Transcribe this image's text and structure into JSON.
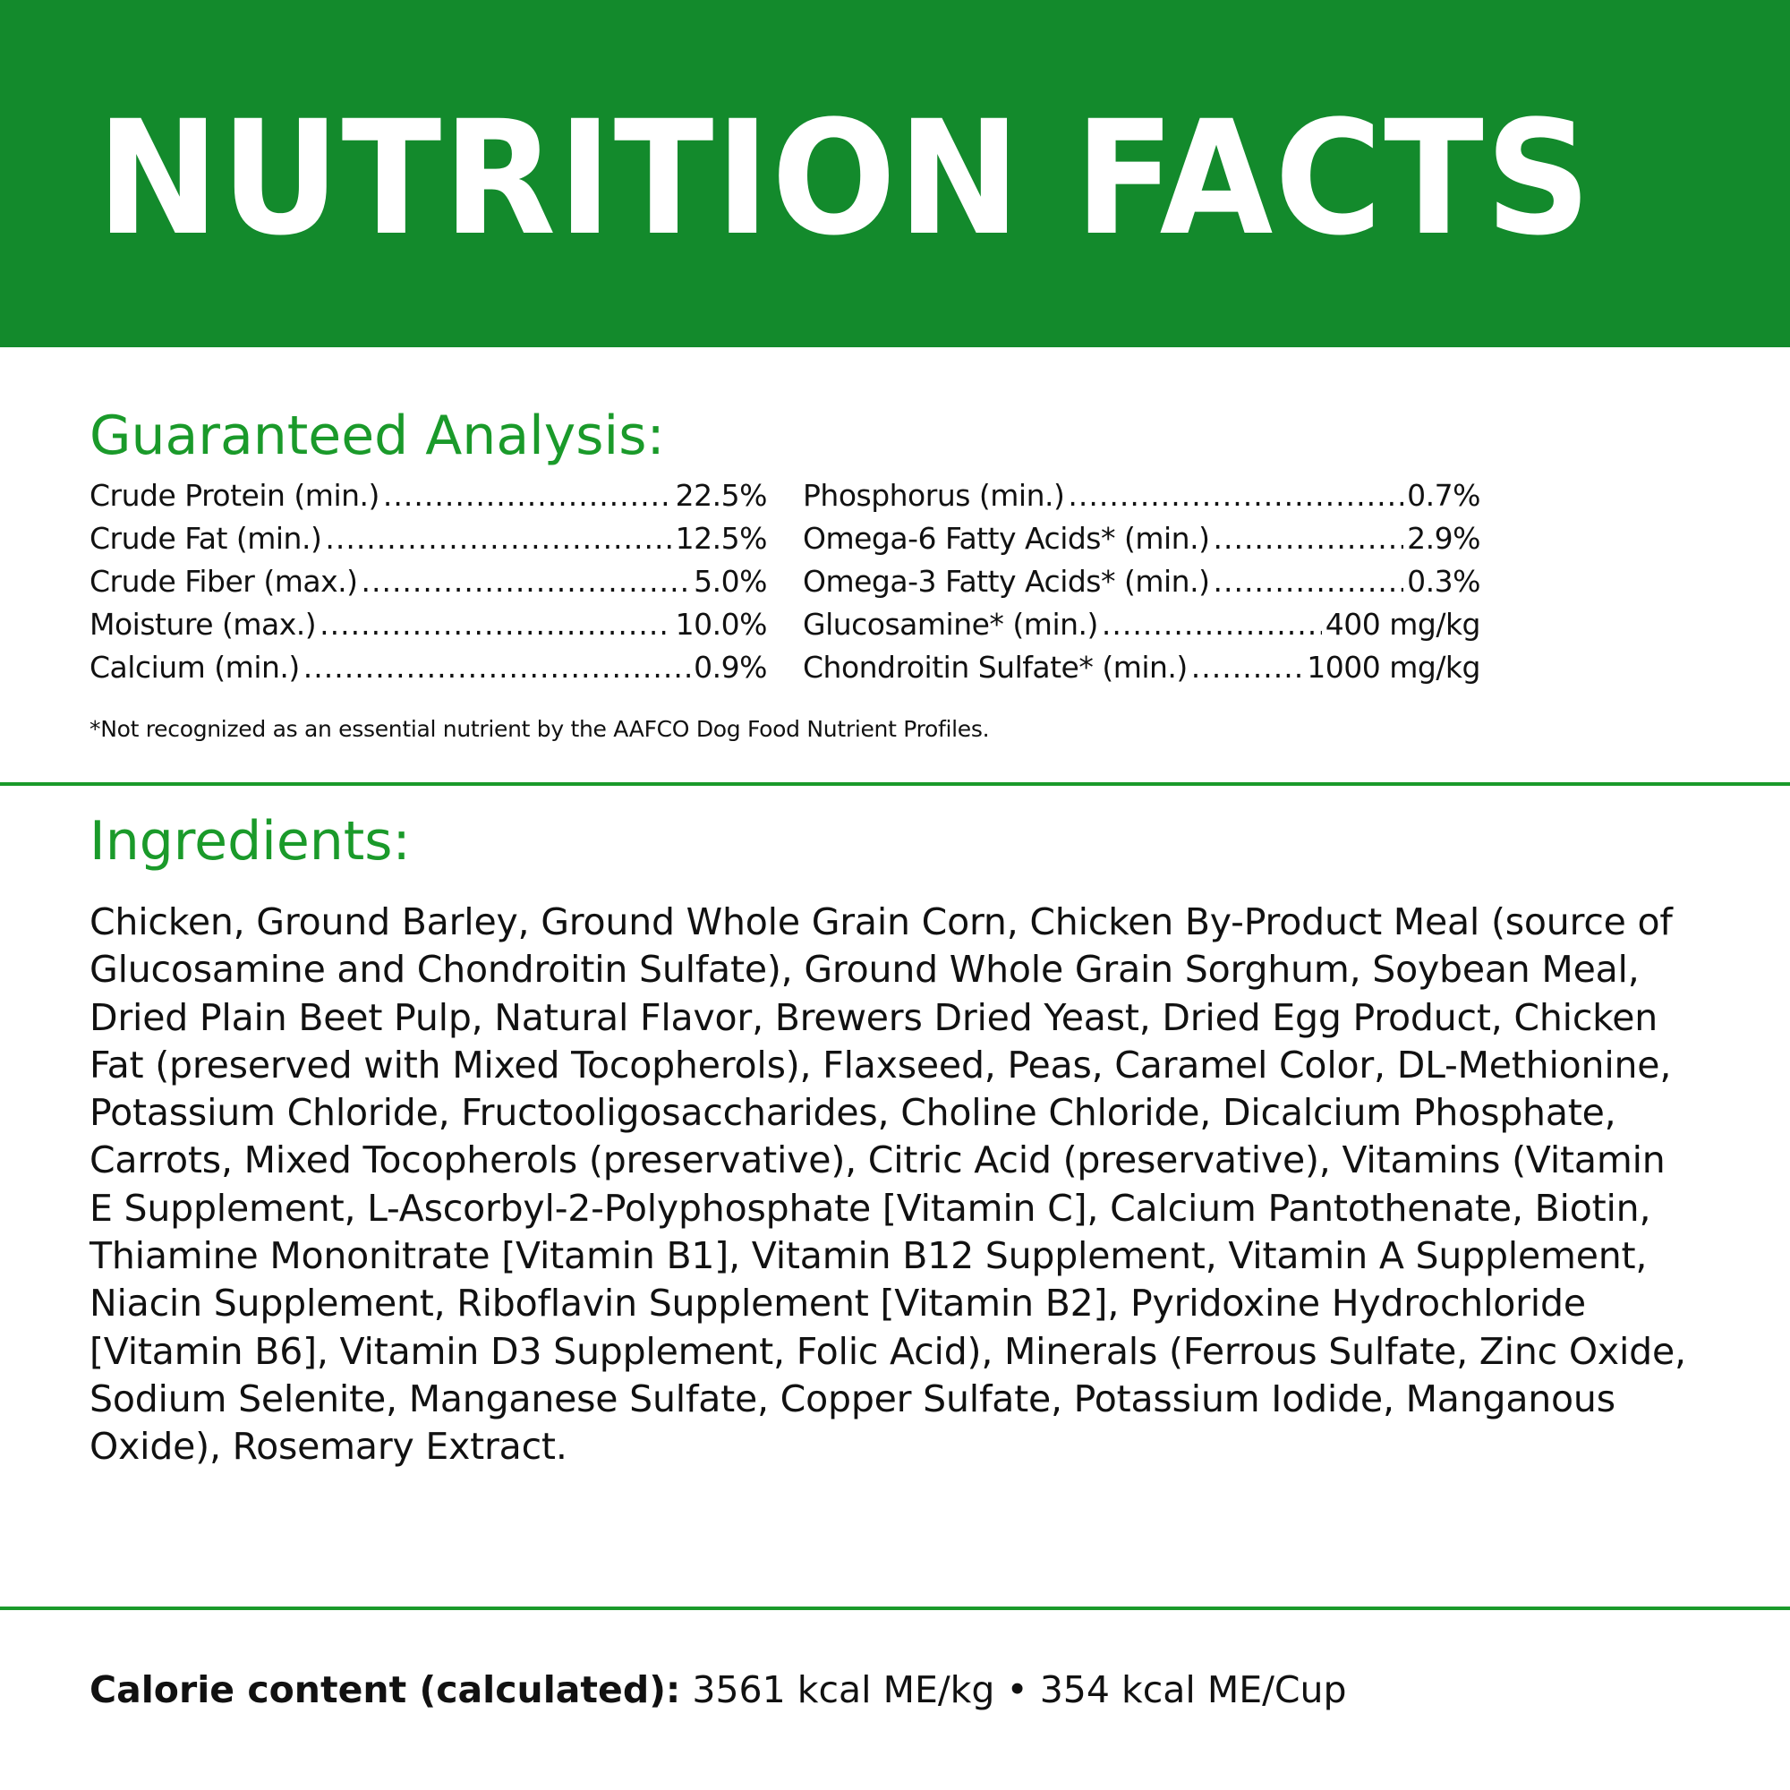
{
  "header": {
    "title": "NUTRITION FACTS"
  },
  "analysis": {
    "title": "Guaranteed Analysis:",
    "left": [
      {
        "label": "Crude Protein (min.)",
        "value": "22.5%"
      },
      {
        "label": "Crude Fat (min.)",
        "value": "12.5%"
      },
      {
        "label": "Crude Fiber (max.)",
        "value": "5.0%"
      },
      {
        "label": "Moisture (max.)",
        "value": "10.0%"
      },
      {
        "label": "Calcium (min.)",
        "value": "0.9%"
      }
    ],
    "right": [
      {
        "label": "Phosphorus (min.)",
        "value": "0.7%"
      },
      {
        "label": "Omega-6 Fatty Acids* (min.)",
        "value": "2.9%"
      },
      {
        "label": "Omega-3 Fatty Acids* (min.)",
        "value": "0.3%"
      },
      {
        "label": "Glucosamine* (min.)",
        "value": "400 mg/kg"
      },
      {
        "label": "Chondroitin Sulfate* (min.)",
        "value": "1000 mg/kg"
      }
    ],
    "footnote": "*Not recognized as an essential nutrient by the AAFCO Dog Food Nutrient Profiles."
  },
  "ingredients": {
    "title": "Ingredients:",
    "text": "Chicken, Ground Barley, Ground Whole Grain Corn, Chicken By-Product Meal (source of Glucosamine and Chondroitin Sulfate), Ground Whole Grain Sorghum, Soybean Meal, Dried Plain Beet Pulp, Natural Flavor, Brewers Dried Yeast, Dried Egg Product, Chicken Fat (preserved with Mixed Tocopherols), Flaxseed, Peas, Caramel Color, DL-Methionine, Potassium Chloride, Fructooligosaccharides, Choline Chloride, Dicalcium Phosphate, Carrots, Mixed Tocopherols (preservative), Citric Acid (preservative), Vitamins (Vitamin E Supplement, L-Ascorbyl-2-Polyphosphate [Vitamin C], Calcium Pantothenate, Biotin, Thiamine Mononitrate [Vitamin B1], Vitamin B12 Supplement, Vitamin A Supplement, Niacin Supplement, Riboflavin Supplement [Vitamin B2], Pyridoxine Hydrochloride [Vitamin B6], Vitamin D3 Supplement, Folic Acid), Minerals (Ferrous Sulfate, Zinc Oxide, Sodium Selenite, Manganese Sulfate, Copper Sulfate, Potassium Iodide, Manganous Oxide), Rosemary Extract."
  },
  "calorie": {
    "label": "Calorie content (calculated):",
    "value": "3561 kcal ME/kg • 354 kcal ME/Cup"
  },
  "colors": {
    "brand_green": "#138a2c",
    "heading_green": "#1a9a2a"
  }
}
